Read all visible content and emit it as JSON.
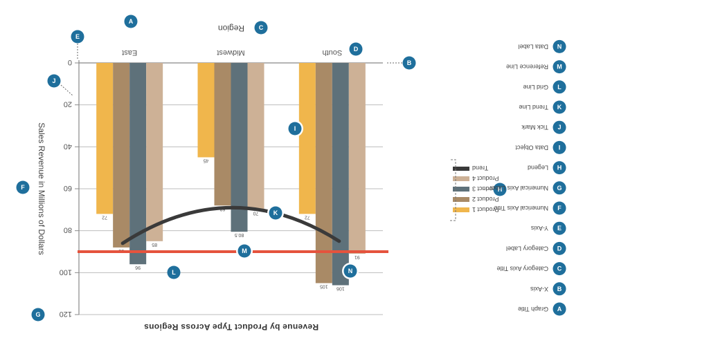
{
  "chart_data": {
    "type": "bar",
    "title": "Revenue by Product Type Across Regions",
    "xlabel": "Region",
    "ylabel": "Sales Revenue in Millions of Dollars",
    "categories": [
      "East",
      "Midwest",
      "South"
    ],
    "ylim": [
      0,
      120
    ],
    "yticks": [
      0,
      20,
      40,
      60,
      80,
      100,
      120
    ],
    "grid": true,
    "legend_position": "right",
    "series": [
      {
        "name": "Product 1",
        "color": "#f0b64c",
        "values": [
          72,
          45,
          72
        ],
        "labels": [
          "72",
          "45",
          "72"
        ]
      },
      {
        "name": "Product 2",
        "color": "#a98a66",
        "values": [
          88,
          68,
          105
        ],
        "labels": [
          "88",
          "68",
          "105"
        ]
      },
      {
        "name": "Product 3",
        "color": "#5e717a",
        "values": [
          96,
          80.5,
          106
        ],
        "labels": [
          "96",
          "80.5",
          "106"
        ]
      },
      {
        "name": "Product 4",
        "color": "#cdb196",
        "values": [
          85,
          70,
          91
        ],
        "labels": [
          "85",
          "70",
          "91"
        ]
      }
    ],
    "trend": {
      "name": "Trend",
      "color": "#3a3a3a",
      "values": [
        86,
        69,
        85
      ]
    },
    "reference_line": {
      "value": 90,
      "color": "#e5533d"
    }
  },
  "key": [
    {
      "letter": "A",
      "label": "Graph Title"
    },
    {
      "letter": "B",
      "label": "X-Axis"
    },
    {
      "letter": "C",
      "label": "Category Axis Title"
    },
    {
      "letter": "D",
      "label": "Category Label"
    },
    {
      "letter": "E",
      "label": "Y-Axis"
    },
    {
      "letter": "F",
      "label": "Numerical Axis Title"
    },
    {
      "letter": "G",
      "label": "Numerical Axis Label"
    },
    {
      "letter": "H",
      "label": "Legend"
    },
    {
      "letter": "I",
      "label": "Data Object"
    },
    {
      "letter": "J",
      "label": "Tick Mark"
    },
    {
      "letter": "K",
      "label": "Trend Line"
    },
    {
      "letter": "L",
      "label": "Grid Line"
    },
    {
      "letter": "M",
      "label": "Reference Line"
    },
    {
      "letter": "N",
      "label": "Data Label"
    }
  ],
  "badge_color": "#1f6f9c"
}
